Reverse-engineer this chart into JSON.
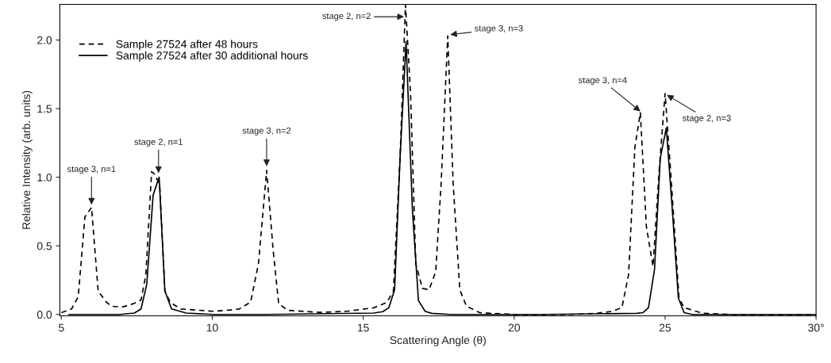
{
  "chart_data": {
    "type": "line",
    "xlabel": "Scattering Angle (θ)",
    "ylabel": "Relative Intensity (arb. units)",
    "xlim": [
      4.95,
      30
    ],
    "ylim": [
      -0.01,
      2.26
    ],
    "xticks": [
      5,
      10,
      15,
      20,
      25,
      {
        "value": 30,
        "label": "30°"
      }
    ],
    "yticks": [
      {
        "value": 0,
        "label": "0.0"
      },
      {
        "value": 0.5,
        "label": "0.5"
      },
      {
        "value": 1,
        "label": "1.0"
      },
      {
        "value": 1.5,
        "label": "1.5"
      },
      {
        "value": 2,
        "label": "2.0"
      }
    ],
    "grid": false,
    "legend": "top left",
    "marker": "none",
    "series": [
      {
        "name": "Sample 27524 after 48 hours",
        "color": "#000000",
        "line_style": "dashed",
        "x": [
          5.0,
          5.34,
          5.56,
          5.78,
          6.0,
          6.22,
          6.49,
          6.66,
          7.02,
          7.37,
          7.64,
          7.8,
          7.99,
          8.1,
          8.26,
          8.43,
          8.61,
          8.96,
          9.58,
          10.03,
          10.47,
          10.9,
          11.27,
          11.53,
          11.8,
          12.02,
          12.2,
          12.5,
          13.57,
          14.45,
          15.34,
          15.78,
          16.0,
          16.22,
          16.4,
          16.57,
          16.74,
          16.96,
          17.18,
          17.4,
          17.58,
          17.8,
          17.98,
          18.2,
          18.42,
          18.86,
          20.0,
          21.85,
          22.73,
          23.26,
          23.57,
          23.79,
          24.0,
          24.18,
          24.38,
          24.6,
          24.8,
          25.0,
          25.19,
          25.46,
          25.63,
          26.25,
          27.13,
          30.0
        ],
        "values": [
          0.013,
          0.04,
          0.13,
          0.71,
          0.78,
          0.17,
          0.09,
          0.06,
          0.054,
          0.077,
          0.106,
          0.29,
          1.04,
          1.02,
          0.94,
          0.17,
          0.087,
          0.04,
          0.03,
          0.023,
          0.03,
          0.04,
          0.09,
          0.37,
          1.05,
          0.46,
          0.077,
          0.03,
          0.015,
          0.023,
          0.048,
          0.087,
          0.17,
          1.14,
          2.26,
          1.6,
          0.37,
          0.19,
          0.18,
          0.31,
          0.95,
          2.03,
          0.95,
          0.18,
          0.06,
          0.013,
          0.0,
          0.0,
          0.008,
          0.023,
          0.05,
          0.29,
          1.22,
          1.47,
          0.64,
          0.35,
          1.04,
          1.61,
          1.02,
          0.12,
          0.05,
          0.008,
          0.0,
          0.0
        ]
      },
      {
        "name": "Sample 27524 after 30 additional hours",
        "color": "#000000",
        "line_style": "solid",
        "x": [
          5.25,
          6.93,
          7.42,
          7.64,
          7.83,
          8.04,
          8.24,
          8.43,
          8.65,
          9.14,
          10.03,
          11.8,
          15.34,
          15.65,
          15.85,
          16.04,
          16.22,
          16.42,
          16.63,
          16.83,
          17.05,
          17.27,
          17.89,
          20.97,
          24.05,
          24.27,
          24.45,
          24.65,
          24.84,
          25.04,
          25.24,
          25.44,
          25.63,
          25.9,
          30.0
        ],
        "values": [
          0.0,
          0.0,
          0.01,
          0.04,
          0.22,
          0.87,
          1.0,
          0.17,
          0.04,
          0.01,
          0.0,
          0.0,
          0.01,
          0.02,
          0.05,
          0.18,
          1.14,
          1.99,
          0.76,
          0.1,
          0.023,
          0.008,
          0.0,
          0.0,
          0.008,
          0.013,
          0.05,
          0.33,
          1.14,
          1.36,
          0.76,
          0.12,
          0.013,
          0.0,
          0.0
        ]
      }
    ],
    "annotations": [
      {
        "text": "stage 3, n=1",
        "x": 6.0,
        "y": 0.8
      },
      {
        "text": "stage 2, n=1",
        "x": 8.22,
        "y": 1.03
      },
      {
        "text": "stage 3, n=2",
        "x": 11.8,
        "y": 1.08
      },
      {
        "text": "stage 2, n=2",
        "x": 16.35,
        "y": 2.17
      },
      {
        "text": "stage 3, n=3",
        "x": 17.88,
        "y": 2.04
      },
      {
        "text": "stage 3, n=4",
        "x": 24.18,
        "y": 1.48
      },
      {
        "text": "stage 2, n=3",
        "x": 25.06,
        "y": 1.6
      }
    ]
  }
}
